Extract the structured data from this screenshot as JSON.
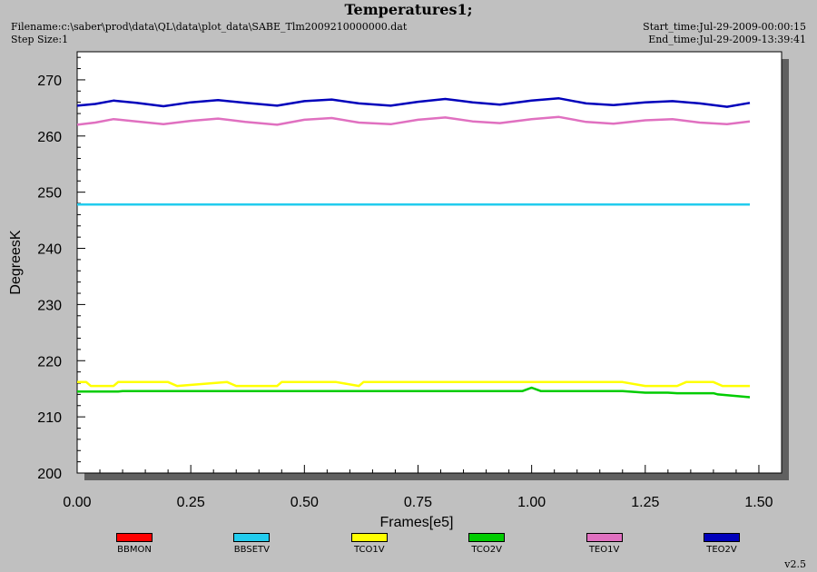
{
  "header": {
    "title": "Temperatures1;",
    "filename": "Filename:c:\\saber\\prod\\data\\QL\\data\\plot_data\\SABE_Tlm2009210000000.dat",
    "step_size": "Step Size:1",
    "start_time": "Start_time:Jul-29-2009-00:00:15",
    "end_time": "End_time:Jul-29-2009-13:39:41"
  },
  "footer": {
    "version": "v2.5"
  },
  "colors": {
    "background": "#c0c0c0",
    "plot_area": "#ffffff",
    "shadow": "#606060"
  },
  "chart_data": {
    "type": "line",
    "title": "Temperatures1;",
    "xlabel": "Frames[e5]",
    "ylabel": "DegreesK",
    "xlim": [
      0.0,
      1.55
    ],
    "ylim": [
      200,
      275
    ],
    "xticks": [
      "0.00",
      "0.25",
      "0.50",
      "0.75",
      "1.00",
      "1.25",
      "1.50"
    ],
    "yticks": [
      "200",
      "210",
      "220",
      "230",
      "240",
      "250",
      "260",
      "270"
    ],
    "grid": false,
    "legend_position": "bottom",
    "series": [
      {
        "name": "BBMON",
        "color": "#ff0000",
        "x": [],
        "y": []
      },
      {
        "name": "BBSETV",
        "color": "#22ccee",
        "x": [
          0.0,
          0.25,
          0.5,
          0.75,
          1.0,
          1.25,
          1.48
        ],
        "y": [
          247.8,
          247.8,
          247.8,
          247.8,
          247.8,
          247.8,
          247.8
        ]
      },
      {
        "name": "TCO1V",
        "color": "#ffff00",
        "x": [
          0.0,
          0.02,
          0.03,
          0.08,
          0.09,
          0.2,
          0.22,
          0.33,
          0.35,
          0.44,
          0.45,
          0.57,
          0.62,
          0.63,
          0.98,
          1.0,
          1.2,
          1.25,
          1.27,
          1.32,
          1.34,
          1.4,
          1.42,
          1.48
        ],
        "y": [
          216.2,
          216.2,
          215.5,
          215.5,
          216.2,
          216.2,
          215.5,
          216.2,
          215.5,
          215.5,
          216.2,
          216.2,
          215.5,
          216.2,
          216.2,
          216.2,
          216.2,
          215.5,
          215.5,
          215.5,
          216.2,
          216.2,
          215.5,
          215.5
        ]
      },
      {
        "name": "TCO2V",
        "color": "#00cc00",
        "x": [
          0.0,
          0.09,
          0.1,
          0.25,
          0.28,
          0.45,
          0.5,
          0.64,
          0.9,
          0.98,
          1.0,
          1.02,
          1.2,
          1.25,
          1.26,
          1.3,
          1.32,
          1.4,
          1.41,
          1.48
        ],
        "y": [
          214.5,
          214.5,
          214.6,
          214.6,
          214.6,
          214.6,
          214.6,
          214.6,
          214.6,
          214.6,
          215.2,
          214.6,
          214.6,
          214.3,
          214.3,
          214.3,
          214.2,
          214.2,
          214.0,
          213.5
        ]
      },
      {
        "name": "TEO1V",
        "color": "#e070c0",
        "x": [
          0.0,
          0.04,
          0.08,
          0.13,
          0.19,
          0.25,
          0.31,
          0.37,
          0.44,
          0.5,
          0.56,
          0.62,
          0.69,
          0.75,
          0.81,
          0.87,
          0.93,
          1.0,
          1.06,
          1.12,
          1.18,
          1.25,
          1.31,
          1.37,
          1.43,
          1.48
        ],
        "y": [
          262.0,
          262.4,
          263.0,
          262.6,
          262.1,
          262.7,
          263.1,
          262.5,
          262.0,
          262.9,
          263.2,
          262.4,
          262.1,
          262.9,
          263.3,
          262.6,
          262.3,
          263.0,
          263.4,
          262.5,
          262.2,
          262.8,
          263.0,
          262.4,
          262.1,
          262.6
        ]
      },
      {
        "name": "TEO2V",
        "color": "#0000bb",
        "x": [
          0.0,
          0.04,
          0.08,
          0.13,
          0.19,
          0.25,
          0.31,
          0.37,
          0.44,
          0.5,
          0.56,
          0.62,
          0.69,
          0.75,
          0.81,
          0.87,
          0.93,
          1.0,
          1.06,
          1.12,
          1.18,
          1.25,
          1.31,
          1.37,
          1.43,
          1.48
        ],
        "y": [
          265.4,
          265.7,
          266.3,
          265.9,
          265.3,
          266.0,
          266.4,
          265.9,
          265.4,
          266.2,
          266.5,
          265.8,
          265.4,
          266.1,
          266.6,
          266.0,
          265.6,
          266.3,
          266.7,
          265.8,
          265.5,
          266.0,
          266.2,
          265.8,
          265.2,
          265.9
        ]
      }
    ]
  }
}
